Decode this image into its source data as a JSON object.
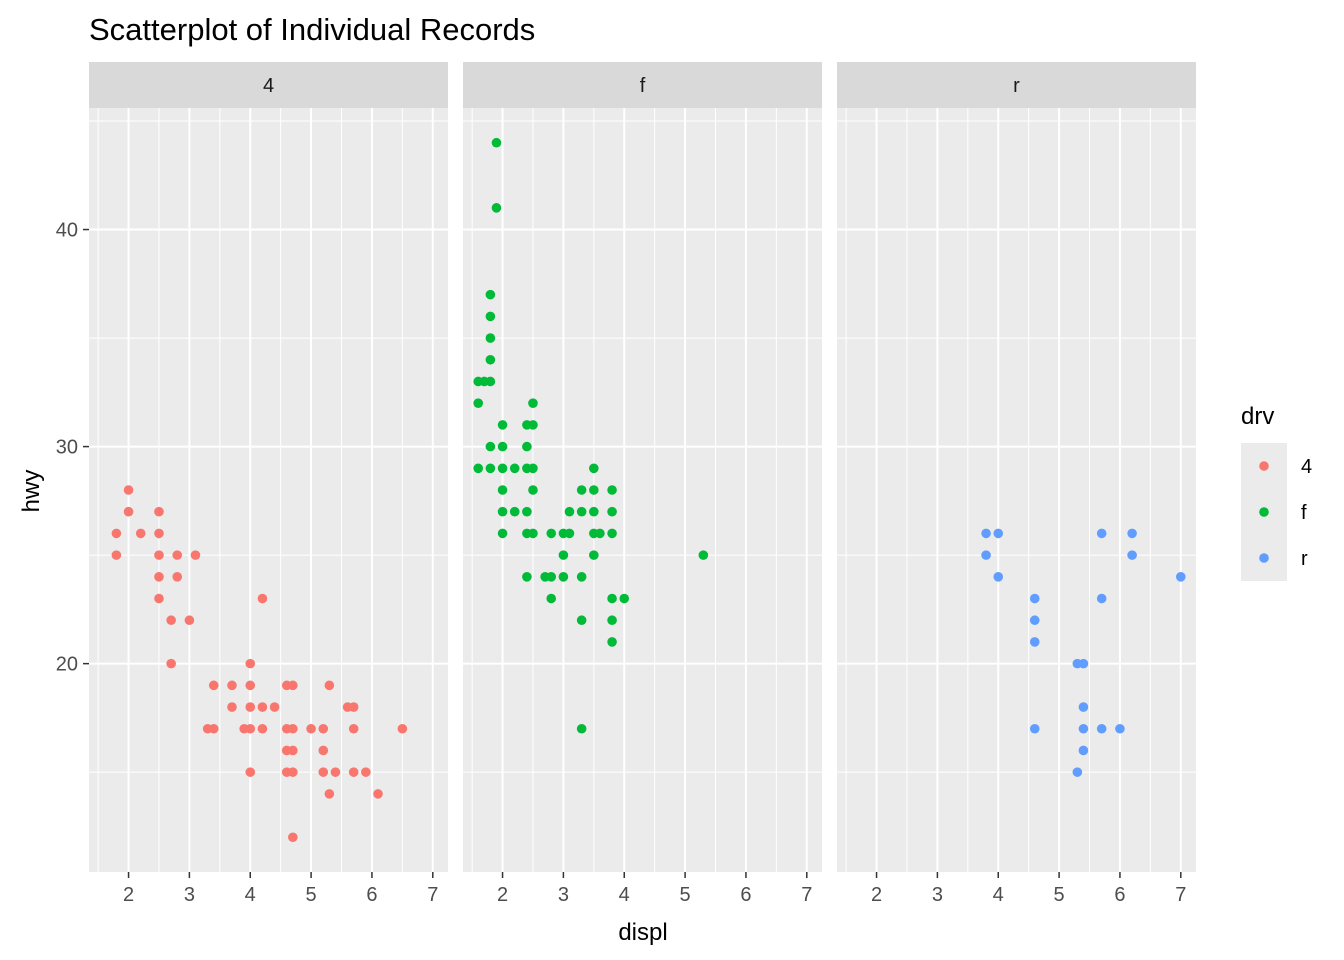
{
  "chart_data": {
    "type": "scatter",
    "title": "Scatterplot of Individual Records",
    "xlabel": "displ",
    "ylabel": "hwy",
    "xlim": [
      1.35,
      7.25
    ],
    "ylim": [
      10.4,
      45.6
    ],
    "x_ticks": [
      2,
      3,
      4,
      5,
      6,
      7
    ],
    "y_ticks": [
      20,
      30,
      40
    ],
    "grid": true,
    "facet_by": "drv",
    "legend": {
      "title": "drv",
      "position": "right",
      "entries": [
        {
          "label": "4",
          "color": "#F8766D"
        },
        {
          "label": "f",
          "color": "#00BA38"
        },
        {
          "label": "r",
          "color": "#619CFF"
        }
      ]
    },
    "panels": [
      {
        "strip": "4",
        "color": "#F8766D",
        "points": [
          [
            1.8,
            26
          ],
          [
            1.8,
            25
          ],
          [
            2.0,
            28
          ],
          [
            2.0,
            27
          ],
          [
            2.2,
            26
          ],
          [
            2.5,
            27
          ],
          [
            2.5,
            26
          ],
          [
            2.5,
            25
          ],
          [
            2.5,
            24
          ],
          [
            2.5,
            23
          ],
          [
            2.7,
            22
          ],
          [
            2.7,
            20
          ],
          [
            2.8,
            25
          ],
          [
            2.8,
            24
          ],
          [
            3.0,
            22
          ],
          [
            3.1,
            25
          ],
          [
            3.3,
            17
          ],
          [
            3.4,
            19
          ],
          [
            3.4,
            17
          ],
          [
            3.7,
            19
          ],
          [
            3.7,
            18
          ],
          [
            3.9,
            17
          ],
          [
            4.0,
            20
          ],
          [
            4.0,
            19
          ],
          [
            4.0,
            18
          ],
          [
            4.0,
            17
          ],
          [
            4.0,
            15
          ],
          [
            4.2,
            23
          ],
          [
            4.2,
            18
          ],
          [
            4.2,
            17
          ],
          [
            4.4,
            18
          ],
          [
            4.6,
            19
          ],
          [
            4.6,
            17
          ],
          [
            4.6,
            16
          ],
          [
            4.6,
            15
          ],
          [
            4.7,
            19
          ],
          [
            4.7,
            17
          ],
          [
            4.7,
            16
          ],
          [
            4.7,
            15
          ],
          [
            4.7,
            12
          ],
          [
            5.0,
            17
          ],
          [
            5.2,
            17
          ],
          [
            5.2,
            16
          ],
          [
            5.2,
            15
          ],
          [
            5.3,
            19
          ],
          [
            5.3,
            14
          ],
          [
            5.4,
            15
          ],
          [
            5.6,
            18
          ],
          [
            5.7,
            18
          ],
          [
            5.7,
            17
          ],
          [
            5.7,
            15
          ],
          [
            5.9,
            15
          ],
          [
            6.1,
            14
          ],
          [
            6.5,
            17
          ]
        ]
      },
      {
        "strip": "f",
        "color": "#00BA38",
        "points": [
          [
            1.6,
            33
          ],
          [
            1.6,
            32
          ],
          [
            1.6,
            29
          ],
          [
            1.7,
            33
          ],
          [
            1.8,
            37
          ],
          [
            1.8,
            36
          ],
          [
            1.8,
            35
          ],
          [
            1.8,
            34
          ],
          [
            1.8,
            33
          ],
          [
            1.8,
            30
          ],
          [
            1.8,
            29
          ],
          [
            1.9,
            44
          ],
          [
            1.9,
            41
          ],
          [
            2.0,
            31
          ],
          [
            2.0,
            30
          ],
          [
            2.0,
            29
          ],
          [
            2.0,
            28
          ],
          [
            2.0,
            27
          ],
          [
            2.0,
            26
          ],
          [
            2.2,
            27
          ],
          [
            2.2,
            29
          ],
          [
            2.4,
            31
          ],
          [
            2.4,
            30
          ],
          [
            2.4,
            29
          ],
          [
            2.4,
            27
          ],
          [
            2.4,
            26
          ],
          [
            2.4,
            24
          ],
          [
            2.5,
            32
          ],
          [
            2.5,
            31
          ],
          [
            2.5,
            29
          ],
          [
            2.5,
            28
          ],
          [
            2.5,
            26
          ],
          [
            2.7,
            24
          ],
          [
            2.8,
            24
          ],
          [
            2.8,
            23
          ],
          [
            2.8,
            26
          ],
          [
            3.0,
            26
          ],
          [
            3.0,
            25
          ],
          [
            3.0,
            24
          ],
          [
            3.1,
            27
          ],
          [
            3.1,
            26
          ],
          [
            3.3,
            28
          ],
          [
            3.3,
            27
          ],
          [
            3.3,
            24
          ],
          [
            3.3,
            22
          ],
          [
            3.3,
            17
          ],
          [
            3.5,
            29
          ],
          [
            3.5,
            28
          ],
          [
            3.5,
            27
          ],
          [
            3.5,
            26
          ],
          [
            3.5,
            25
          ],
          [
            3.6,
            26
          ],
          [
            3.8,
            28
          ],
          [
            3.8,
            27
          ],
          [
            3.8,
            26
          ],
          [
            3.8,
            23
          ],
          [
            3.8,
            22
          ],
          [
            3.8,
            21
          ],
          [
            4.0,
            23
          ],
          [
            5.3,
            25
          ]
        ]
      },
      {
        "strip": "r",
        "color": "#619CFF",
        "points": [
          [
            3.8,
            26
          ],
          [
            3.8,
            25
          ],
          [
            4.0,
            26
          ],
          [
            4.0,
            24
          ],
          [
            4.6,
            23
          ],
          [
            4.6,
            22
          ],
          [
            4.6,
            21
          ],
          [
            4.6,
            17
          ],
          [
            5.3,
            20
          ],
          [
            5.3,
            15
          ],
          [
            5.4,
            20
          ],
          [
            5.4,
            18
          ],
          [
            5.4,
            17
          ],
          [
            5.4,
            16
          ],
          [
            5.7,
            26
          ],
          [
            5.7,
            23
          ],
          [
            5.7,
            17
          ],
          [
            6.0,
            17
          ],
          [
            6.2,
            26
          ],
          [
            6.2,
            25
          ],
          [
            7.0,
            24
          ]
        ]
      }
    ]
  }
}
